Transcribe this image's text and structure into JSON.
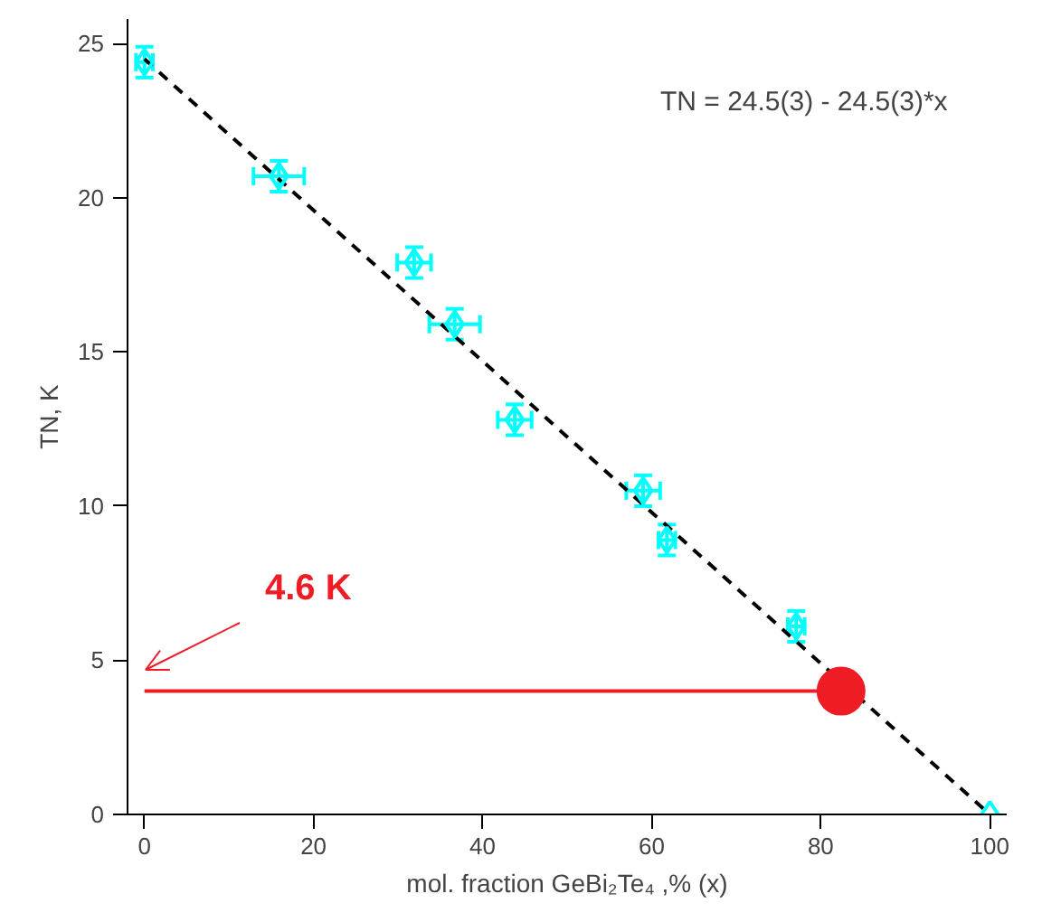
{
  "chart_data": {
    "type": "scatter",
    "xlabel": "mol. fraction GeBi₂Te₄ ,% (x)",
    "ylabel": "TN, K",
    "xlim": [
      -2,
      102
    ],
    "ylim": [
      0,
      25.8
    ],
    "xticks": [
      0,
      20,
      40,
      60,
      80,
      100
    ],
    "yticks": [
      0,
      5,
      10,
      15,
      20,
      25
    ],
    "grid": false,
    "series": [
      {
        "type": "line",
        "color": "#000000",
        "line_style": "dashed",
        "x": [
          0,
          100
        ],
        "values": [
          24.5,
          0
        ]
      },
      {
        "color": "#00ffff",
        "marker": "diamond",
        "x": [
          0,
          15.9,
          31.9,
          36.7,
          43.8,
          59.0,
          61.8,
          77.1,
          100
        ],
        "values": [
          24.4,
          20.7,
          17.9,
          15.9,
          12.8,
          10.5,
          8.9,
          6.1,
          0
        ],
        "errors": [
          0.5,
          0.5,
          0.5,
          0.5,
          0.5,
          0.5,
          0.5,
          0.5,
          null
        ],
        "xerrors": [
          1,
          3,
          2,
          3,
          2,
          2,
          1,
          1,
          null
        ]
      },
      {
        "type": "line",
        "color": "#ee1c25",
        "line_style": "solid",
        "x": [
          0,
          82.4
        ],
        "values": [
          4.0,
          4.0
        ]
      },
      {
        "color": "#ee1c25",
        "marker": "circle",
        "x": [
          82.4
        ],
        "values": [
          4.0
        ]
      }
    ],
    "annotations": [
      "TN = 24.5(3) - 24.5(3)*x",
      "4.6 K"
    ]
  }
}
